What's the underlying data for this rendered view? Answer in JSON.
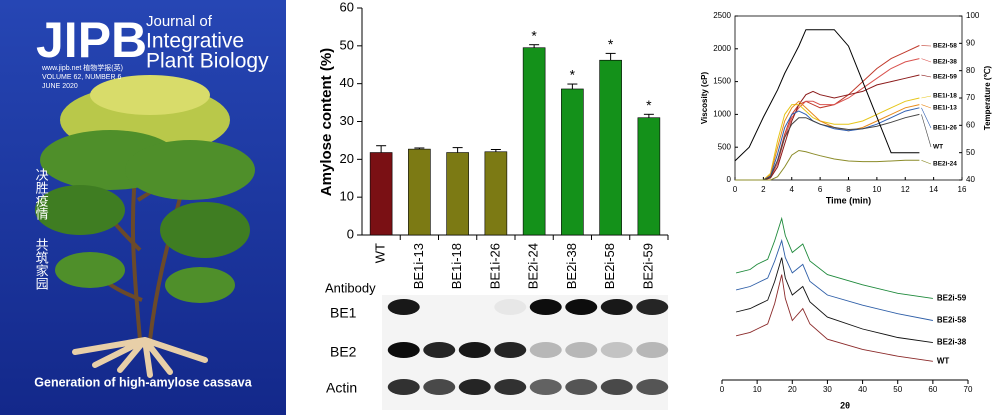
{
  "cover": {
    "logo": "JIPB",
    "journal": [
      "Journal of",
      "Integrative",
      "Plant Biology"
    ],
    "website": "www.jipb.net 植物学报(英)",
    "volume": "VOLUME 62, NUMBER 6",
    "date": "JUNE 2020",
    "slogan": [
      "决胜疫情",
      "共筑家园"
    ],
    "caption": "Generation of high-amylose cassava"
  },
  "blot": {
    "header": "Antibody",
    "rows": [
      "BE1",
      "BE2",
      "Actin"
    ]
  },
  "chart_data": [
    {
      "type": "bar",
      "ylabel": "Amylose content (%)",
      "categories": [
        "WT",
        "BE1i-13",
        "BE1i-18",
        "BE1i-26",
        "BE2i-24",
        "BE2i-38",
        "BE2i-58",
        "BE2i-59"
      ],
      "values": [
        21.8,
        22.7,
        21.8,
        22,
        49.5,
        38.6,
        46.2,
        31
      ],
      "errors": [
        1.8,
        0.3,
        1.3,
        0.6,
        0.8,
        1.3,
        1.8,
        0.9
      ],
      "value_annotations": [
        null,
        null,
        null,
        null,
        "*",
        "*",
        "*",
        "*"
      ],
      "colors": [
        "#7a1014",
        "#7c7a14",
        "#7c7a14",
        "#7c7a14",
        "#14911a",
        "#14911a",
        "#14911a",
        "#14911a"
      ],
      "ylim": [
        0,
        60
      ],
      "yticks": [
        0,
        10,
        20,
        30,
        40,
        50,
        60
      ]
    },
    {
      "type": "line",
      "xlabel": "Time (min)",
      "ylabel": "Viscosity (cP)",
      "y2label": "Temperature (℃)",
      "x": [
        0,
        1,
        2,
        2.5,
        3,
        3.5,
        4,
        4.5,
        5,
        5.5,
        6,
        7,
        8,
        9,
        10,
        11,
        12,
        13
      ],
      "xlim": [
        0,
        16
      ],
      "xticks": [
        0,
        2,
        4,
        6,
        8,
        10,
        12,
        14,
        16
      ],
      "ylim": [
        0,
        2500
      ],
      "yticks": [
        0,
        500,
        1000,
        1500,
        2000,
        2500
      ],
      "y2lim": [
        40,
        100
      ],
      "y2ticks": [
        40,
        50,
        60,
        70,
        80,
        90,
        100
      ],
      "series": [
        {
          "name": "BE2i-58",
          "color": "#c0392b",
          "values": [
            0,
            0,
            0,
            50,
            300,
            700,
            1000,
            1150,
            1200,
            1150,
            1100,
            1150,
            1300,
            1500,
            1700,
            1850,
            1950,
            2050
          ]
        },
        {
          "name": "BE2i-38",
          "color": "#d9534f",
          "values": [
            0,
            0,
            0,
            40,
            250,
            650,
            950,
            1100,
            1200,
            1200,
            1150,
            1150,
            1250,
            1400,
            1550,
            1700,
            1800,
            1850
          ]
        },
        {
          "name": "BE2i-59",
          "color": "#8b1a1a",
          "values": [
            0,
            0,
            0,
            30,
            200,
            550,
            900,
            1150,
            1300,
            1350,
            1300,
            1250,
            1300,
            1350,
            1450,
            1500,
            1550,
            1600
          ]
        },
        {
          "name": "BE1i-18",
          "color": "#e6c619",
          "values": [
            0,
            0,
            0,
            100,
            600,
            1000,
            1150,
            1150,
            1050,
            950,
            900,
            850,
            850,
            900,
            1000,
            1100,
            1200,
            1250
          ]
        },
        {
          "name": "BE1i-13",
          "color": "#e88a1a",
          "values": [
            0,
            0,
            0,
            80,
            500,
            900,
            1100,
            1200,
            1100,
            1000,
            900,
            800,
            750,
            800,
            900,
            1000,
            1100,
            1150
          ]
        },
        {
          "name": "BE1i-26",
          "color": "#2f5fb3",
          "values": [
            0,
            0,
            0,
            60,
            400,
            800,
            1000,
            1050,
            1000,
            900,
            850,
            780,
            750,
            780,
            850,
            950,
            1050,
            1100
          ]
        },
        {
          "name": "WT",
          "color": "#444444",
          "values": [
            0,
            0,
            0,
            50,
            300,
            650,
            850,
            950,
            950,
            900,
            850,
            800,
            770,
            780,
            820,
            880,
            950,
            1000
          ]
        },
        {
          "name": "BE2i-24",
          "color": "#8c8c2a",
          "values": [
            0,
            0,
            0,
            0,
            50,
            200,
            380,
            450,
            430,
            400,
            370,
            320,
            290,
            280,
            280,
            290,
            300,
            300
          ]
        },
        {
          "axis": "y2",
          "color": "#000000",
          "values": [
            47,
            52,
            63,
            68,
            73,
            79,
            84,
            89,
            95,
            95,
            95,
            95,
            89,
            76,
            63,
            50,
            50,
            50
          ]
        }
      ]
    },
    {
      "type": "line",
      "xlabel": "2θ",
      "x": [
        4,
        8,
        10,
        13,
        15,
        17,
        18,
        20,
        23,
        25,
        30,
        40,
        50,
        60
      ],
      "xlim": [
        0,
        70
      ],
      "xticks": [
        0,
        10,
        20,
        30,
        40,
        50,
        60,
        70
      ],
      "ylim": [
        0,
        100
      ],
      "series": [
        {
          "name": "BE2i-59",
          "color": "#1f8a3c",
          "values": [
            63,
            65,
            68,
            71,
            82,
            95,
            85,
            75,
            80,
            70,
            62,
            56,
            51,
            48
          ]
        },
        {
          "name": "BE2i-58",
          "color": "#2f5fa8",
          "values": [
            53,
            55,
            57,
            60,
            70,
            82,
            72,
            63,
            68,
            58,
            50,
            44,
            39,
            35
          ]
        },
        {
          "name": "BE2i-38",
          "color": "#111111",
          "values": [
            40,
            42,
            44,
            47,
            58,
            72,
            60,
            50,
            55,
            46,
            37,
            30,
            25,
            22
          ]
        },
        {
          "name": "WT",
          "color": "#8b2a2a",
          "values": [
            26,
            28,
            30,
            33,
            45,
            62,
            48,
            35,
            42,
            33,
            24,
            18,
            14,
            11
          ]
        }
      ]
    }
  ]
}
